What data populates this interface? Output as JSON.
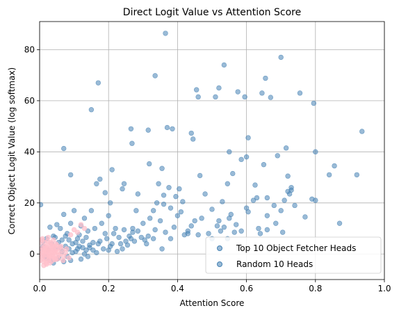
{
  "chart_data": {
    "type": "scatter",
    "title": "Direct Logit Value vs Attention Score",
    "xlabel": "Attention Score",
    "ylabel": "Correct Object Logit Value (log softmax)",
    "xlim": [
      0.0,
      1.0
    ],
    "ylim": [
      -10,
      91
    ],
    "xticks": [
      "0.0",
      "0.2",
      "0.4",
      "0.6",
      "0.8",
      "1.0"
    ],
    "xtick_values": [
      0.0,
      0.2,
      0.4,
      0.6,
      0.8,
      1.0
    ],
    "yticks": [
      "0",
      "20",
      "40",
      "60",
      "80"
    ],
    "ytick_values": [
      0,
      20,
      40,
      60,
      80
    ],
    "grid": true,
    "legend_position": "bottom-right",
    "series": [
      {
        "name": "Top 10 Object Fetcher Heads",
        "color": "#4682b4",
        "points": [
          [
            0.003,
            19.3
          ],
          [
            0.07,
            41.3
          ],
          [
            0.09,
            31.0
          ],
          [
            0.17,
            67.0
          ],
          [
            0.15,
            56.5
          ],
          [
            0.165,
            27.5
          ],
          [
            0.175,
            29.3
          ],
          [
            0.19,
            24.0
          ],
          [
            0.205,
            20.0
          ],
          [
            0.21,
            33.0
          ],
          [
            0.24,
            25.5
          ],
          [
            0.245,
            27.5
          ],
          [
            0.265,
            49.0
          ],
          [
            0.268,
            43.3
          ],
          [
            0.285,
            23.5
          ],
          [
            0.315,
            48.5
          ],
          [
            0.318,
            35.3
          ],
          [
            0.335,
            69.8
          ],
          [
            0.365,
            86.4
          ],
          [
            0.37,
            49.5
          ],
          [
            0.385,
            49.0
          ],
          [
            0.355,
            33.5
          ],
          [
            0.345,
            27.5
          ],
          [
            0.36,
            23.0
          ],
          [
            0.375,
            26.0
          ],
          [
            0.395,
            22.5
          ],
          [
            0.405,
            25.5
          ],
          [
            0.415,
            20.5
          ],
          [
            0.44,
            47.3
          ],
          [
            0.445,
            45.0
          ],
          [
            0.455,
            64.3
          ],
          [
            0.46,
            61.5
          ],
          [
            0.465,
            30.7
          ],
          [
            0.52,
            65.0
          ],
          [
            0.51,
            61.5
          ],
          [
            0.535,
            74.0
          ],
          [
            0.53,
            20.5
          ],
          [
            0.545,
            27.5
          ],
          [
            0.55,
            40.0
          ],
          [
            0.56,
            31.5
          ],
          [
            0.575,
            63.5
          ],
          [
            0.585,
            37.0
          ],
          [
            0.595,
            61.5
          ],
          [
            0.6,
            38.0
          ],
          [
            0.605,
            45.5
          ],
          [
            0.625,
            27.0
          ],
          [
            0.63,
            22.0
          ],
          [
            0.645,
            63.0
          ],
          [
            0.65,
            35.0
          ],
          [
            0.655,
            68.8
          ],
          [
            0.67,
            61.3
          ],
          [
            0.69,
            38.5
          ],
          [
            0.7,
            77.0
          ],
          [
            0.715,
            41.5
          ],
          [
            0.72,
            30.5
          ],
          [
            0.73,
            26.0
          ],
          [
            0.755,
            63.0
          ],
          [
            0.77,
            14.5
          ],
          [
            0.79,
            21.5
          ],
          [
            0.795,
            59.0
          ],
          [
            0.8,
            40.0
          ],
          [
            0.8,
            21.0
          ],
          [
            0.84,
            31.0
          ],
          [
            0.855,
            34.5
          ],
          [
            0.87,
            12.0
          ],
          [
            0.92,
            31.0
          ],
          [
            0.935,
            48.0
          ],
          [
            0.55,
            14.0
          ],
          [
            0.52,
            13.0
          ],
          [
            0.5,
            17.5
          ],
          [
            0.48,
            23.5
          ],
          [
            0.47,
            14.0
          ],
          [
            0.44,
            11.0
          ],
          [
            0.43,
            8.0
          ],
          [
            0.42,
            7.5
          ],
          [
            0.4,
            15.0
          ],
          [
            0.38,
            18.0
          ],
          [
            0.36,
            19.5
          ],
          [
            0.34,
            20.0
          ],
          [
            0.33,
            17.0
          ],
          [
            0.32,
            14.0
          ],
          [
            0.3,
            12.0
          ],
          [
            0.28,
            17.0
          ],
          [
            0.27,
            10.0
          ],
          [
            0.26,
            7.0
          ],
          [
            0.25,
            5.0
          ],
          [
            0.24,
            2.0
          ],
          [
            0.22,
            10.0
          ],
          [
            0.2,
            15.0
          ],
          [
            0.19,
            8.0
          ],
          [
            0.18,
            12.0
          ],
          [
            0.17,
            4.0
          ],
          [
            0.16,
            10.0
          ],
          [
            0.15,
            17.0
          ],
          [
            0.14,
            9.0
          ],
          [
            0.13,
            14.0
          ],
          [
            0.12,
            11.0
          ],
          [
            0.11,
            6.0
          ],
          [
            0.1,
            17.0
          ],
          [
            0.09,
            12.0
          ],
          [
            0.08,
            8.0
          ],
          [
            0.07,
            15.5
          ],
          [
            0.06,
            10.0
          ],
          [
            0.05,
            11.5
          ],
          [
            0.04,
            7.0
          ],
          [
            0.03,
            10.5
          ],
          [
            0.02,
            6.0
          ],
          [
            0.01,
            3.0
          ],
          [
            0.015,
            -1.0
          ],
          [
            0.025,
            1.5
          ],
          [
            0.035,
            4.0
          ],
          [
            0.045,
            2.0
          ],
          [
            0.055,
            -1.5
          ],
          [
            0.065,
            1.0
          ],
          [
            0.075,
            3.0
          ],
          [
            0.085,
            5.5
          ],
          [
            0.095,
            0.5
          ],
          [
            0.105,
            4.5
          ],
          [
            0.115,
            7.5
          ],
          [
            0.125,
            2.5
          ],
          [
            0.135,
            6.5
          ],
          [
            0.145,
            3.5
          ],
          [
            0.155,
            1.5
          ],
          [
            0.165,
            0.5
          ],
          [
            0.175,
            5.0
          ],
          [
            0.185,
            2.0
          ],
          [
            0.195,
            6.0
          ],
          [
            0.205,
            3.0
          ],
          [
            0.215,
            8.0
          ],
          [
            0.225,
            1.0
          ],
          [
            0.235,
            4.0
          ],
          [
            0.245,
            9.5
          ],
          [
            0.255,
            3.5
          ],
          [
            0.265,
            6.0
          ],
          [
            0.275,
            5.0
          ],
          [
            0.285,
            9.0
          ],
          [
            0.295,
            6.5
          ],
          [
            0.305,
            5.5
          ],
          [
            0.315,
            7.0
          ],
          [
            0.335,
            9.5
          ],
          [
            0.35,
            13.0
          ],
          [
            0.365,
            8.5
          ],
          [
            0.39,
            10.5
          ],
          [
            0.41,
            16.5
          ],
          [
            0.45,
            13.0
          ],
          [
            0.49,
            8.0
          ],
          [
            0.515,
            11.0
          ],
          [
            0.57,
            11.5
          ],
          [
            0.585,
            9.0
          ],
          [
            0.605,
            16.5
          ],
          [
            0.635,
            10.0
          ],
          [
            0.66,
            15.0
          ],
          [
            0.685,
            12.0
          ],
          [
            0.7,
            17.0
          ],
          [
            0.74,
            19.0
          ],
          [
            0.62,
            21.0
          ],
          [
            0.6,
            18.0
          ],
          [
            0.555,
            15.5
          ],
          [
            0.535,
            10.5
          ],
          [
            0.11,
            2.0
          ],
          [
            0.12,
            -2.0
          ],
          [
            0.13,
            0.0
          ],
          [
            0.14,
            -1.0
          ],
          [
            0.09,
            -2.5
          ],
          [
            0.08,
            -1.0
          ],
          [
            0.07,
            -3.0
          ],
          [
            0.06,
            2.5
          ],
          [
            0.05,
            -2.0
          ],
          [
            0.04,
            -3.5
          ],
          [
            0.03,
            -2.5
          ],
          [
            0.02,
            -1.5
          ],
          [
            0.01,
            5.0
          ],
          [
            0.005,
            2.0
          ],
          [
            0.0,
            0.0
          ],
          [
            0.045,
            6.5
          ],
          [
            0.055,
            4.5
          ],
          [
            0.065,
            5.5
          ],
          [
            0.075,
            7.0
          ],
          [
            0.085,
            2.0
          ],
          [
            0.095,
            4.0
          ],
          [
            0.105,
            1.0
          ],
          [
            0.115,
            3.0
          ],
          [
            0.125,
            5.0
          ],
          [
            0.135,
            1.5
          ],
          [
            0.145,
            2.5
          ],
          [
            0.155,
            4.5
          ],
          [
            0.2,
            1.5
          ],
          [
            0.21,
            4.0
          ],
          [
            0.23,
            6.5
          ],
          [
            0.27,
            8.5
          ],
          [
            0.31,
            4.0
          ],
          [
            0.33,
            6.0
          ],
          [
            0.355,
            2.0
          ],
          [
            0.38,
            6.0
          ],
          [
            0.43,
            9.0
          ],
          [
            0.46,
            7.5
          ],
          [
            0.5,
            6.0
          ],
          [
            0.525,
            9.0
          ],
          [
            0.545,
            6.0
          ],
          [
            0.565,
            8.5
          ],
          [
            0.64,
            8.0
          ],
          [
            0.66,
            9.5
          ],
          [
            0.705,
            8.5
          ],
          [
            0.72,
            24.5
          ],
          [
            0.725,
            23.5
          ],
          [
            0.73,
            25.0
          ],
          [
            0.71,
            21.0
          ],
          [
            0.68,
            19.0
          ],
          [
            0.66,
            22.0
          ]
        ]
      },
      {
        "name": "Random 10 Heads",
        "color": "#ffc0cb",
        "points": [
          [
            0.002,
            0.0
          ],
          [
            0.004,
            1.5
          ],
          [
            0.006,
            -1.0
          ],
          [
            0.008,
            2.5
          ],
          [
            0.01,
            -2.0
          ],
          [
            0.012,
            0.5
          ],
          [
            0.014,
            3.0
          ],
          [
            0.016,
            -1.5
          ],
          [
            0.018,
            1.0
          ],
          [
            0.02,
            -0.5
          ],
          [
            0.022,
            2.0
          ],
          [
            0.024,
            -2.5
          ],
          [
            0.026,
            0.0
          ],
          [
            0.028,
            3.5
          ],
          [
            0.03,
            -1.0
          ],
          [
            0.032,
            1.5
          ],
          [
            0.034,
            4.0
          ],
          [
            0.036,
            -0.5
          ],
          [
            0.038,
            2.5
          ],
          [
            0.04,
            0.5
          ],
          [
            0.042,
            -1.5
          ],
          [
            0.044,
            3.0
          ],
          [
            0.046,
            1.0
          ],
          [
            0.048,
            -2.0
          ],
          [
            0.05,
            2.0
          ],
          [
            0.003,
            4.5
          ],
          [
            0.007,
            5.5
          ],
          [
            0.011,
            -3.0
          ],
          [
            0.015,
            4.5
          ],
          [
            0.019,
            -3.5
          ],
          [
            0.023,
            5.0
          ],
          [
            0.027,
            -2.0
          ],
          [
            0.031,
            4.5
          ],
          [
            0.035,
            1.0
          ],
          [
            0.039,
            -1.0
          ],
          [
            0.043,
            0.5
          ],
          [
            0.047,
            4.0
          ],
          [
            0.052,
            1.0
          ],
          [
            0.055,
            -0.5
          ],
          [
            0.058,
            2.5
          ],
          [
            0.06,
            0.0
          ],
          [
            0.065,
            1.5
          ],
          [
            0.07,
            -1.0
          ],
          [
            0.075,
            0.5
          ],
          [
            0.001,
            -2.5
          ],
          [
            0.005,
            -0.5
          ],
          [
            0.009,
            0.8
          ],
          [
            0.013,
            1.8
          ],
          [
            0.017,
            -0.2
          ],
          [
            0.021,
            2.8
          ],
          [
            0.025,
            1.2
          ],
          [
            0.029,
            -0.8
          ],
          [
            0.033,
            2.2
          ],
          [
            0.037,
            3.2
          ],
          [
            0.041,
            1.7
          ],
          [
            0.045,
            -0.3
          ],
          [
            0.012,
            -4.5
          ],
          [
            0.02,
            -4.0
          ],
          [
            0.03,
            -3.5
          ],
          [
            0.04,
            5.5
          ],
          [
            0.008,
            6.0
          ],
          [
            0.025,
            6.5
          ],
          [
            0.035,
            -2.8
          ],
          [
            0.05,
            3.5
          ],
          [
            0.062,
            3.0
          ],
          [
            0.068,
            -2.5
          ],
          [
            0.016,
            2.3
          ],
          [
            0.028,
            0.3
          ],
          [
            0.044,
            -2.2
          ],
          [
            0.054,
            -1.8
          ],
          [
            0.12,
            11.5
          ],
          [
            0.13,
            10.0
          ],
          [
            0.11,
            8.5
          ],
          [
            0.1,
            9.5
          ],
          [
            0.09,
            7.5
          ],
          [
            0.085,
            -1.5
          ],
          [
            0.078,
            2.0
          ]
        ]
      }
    ]
  }
}
